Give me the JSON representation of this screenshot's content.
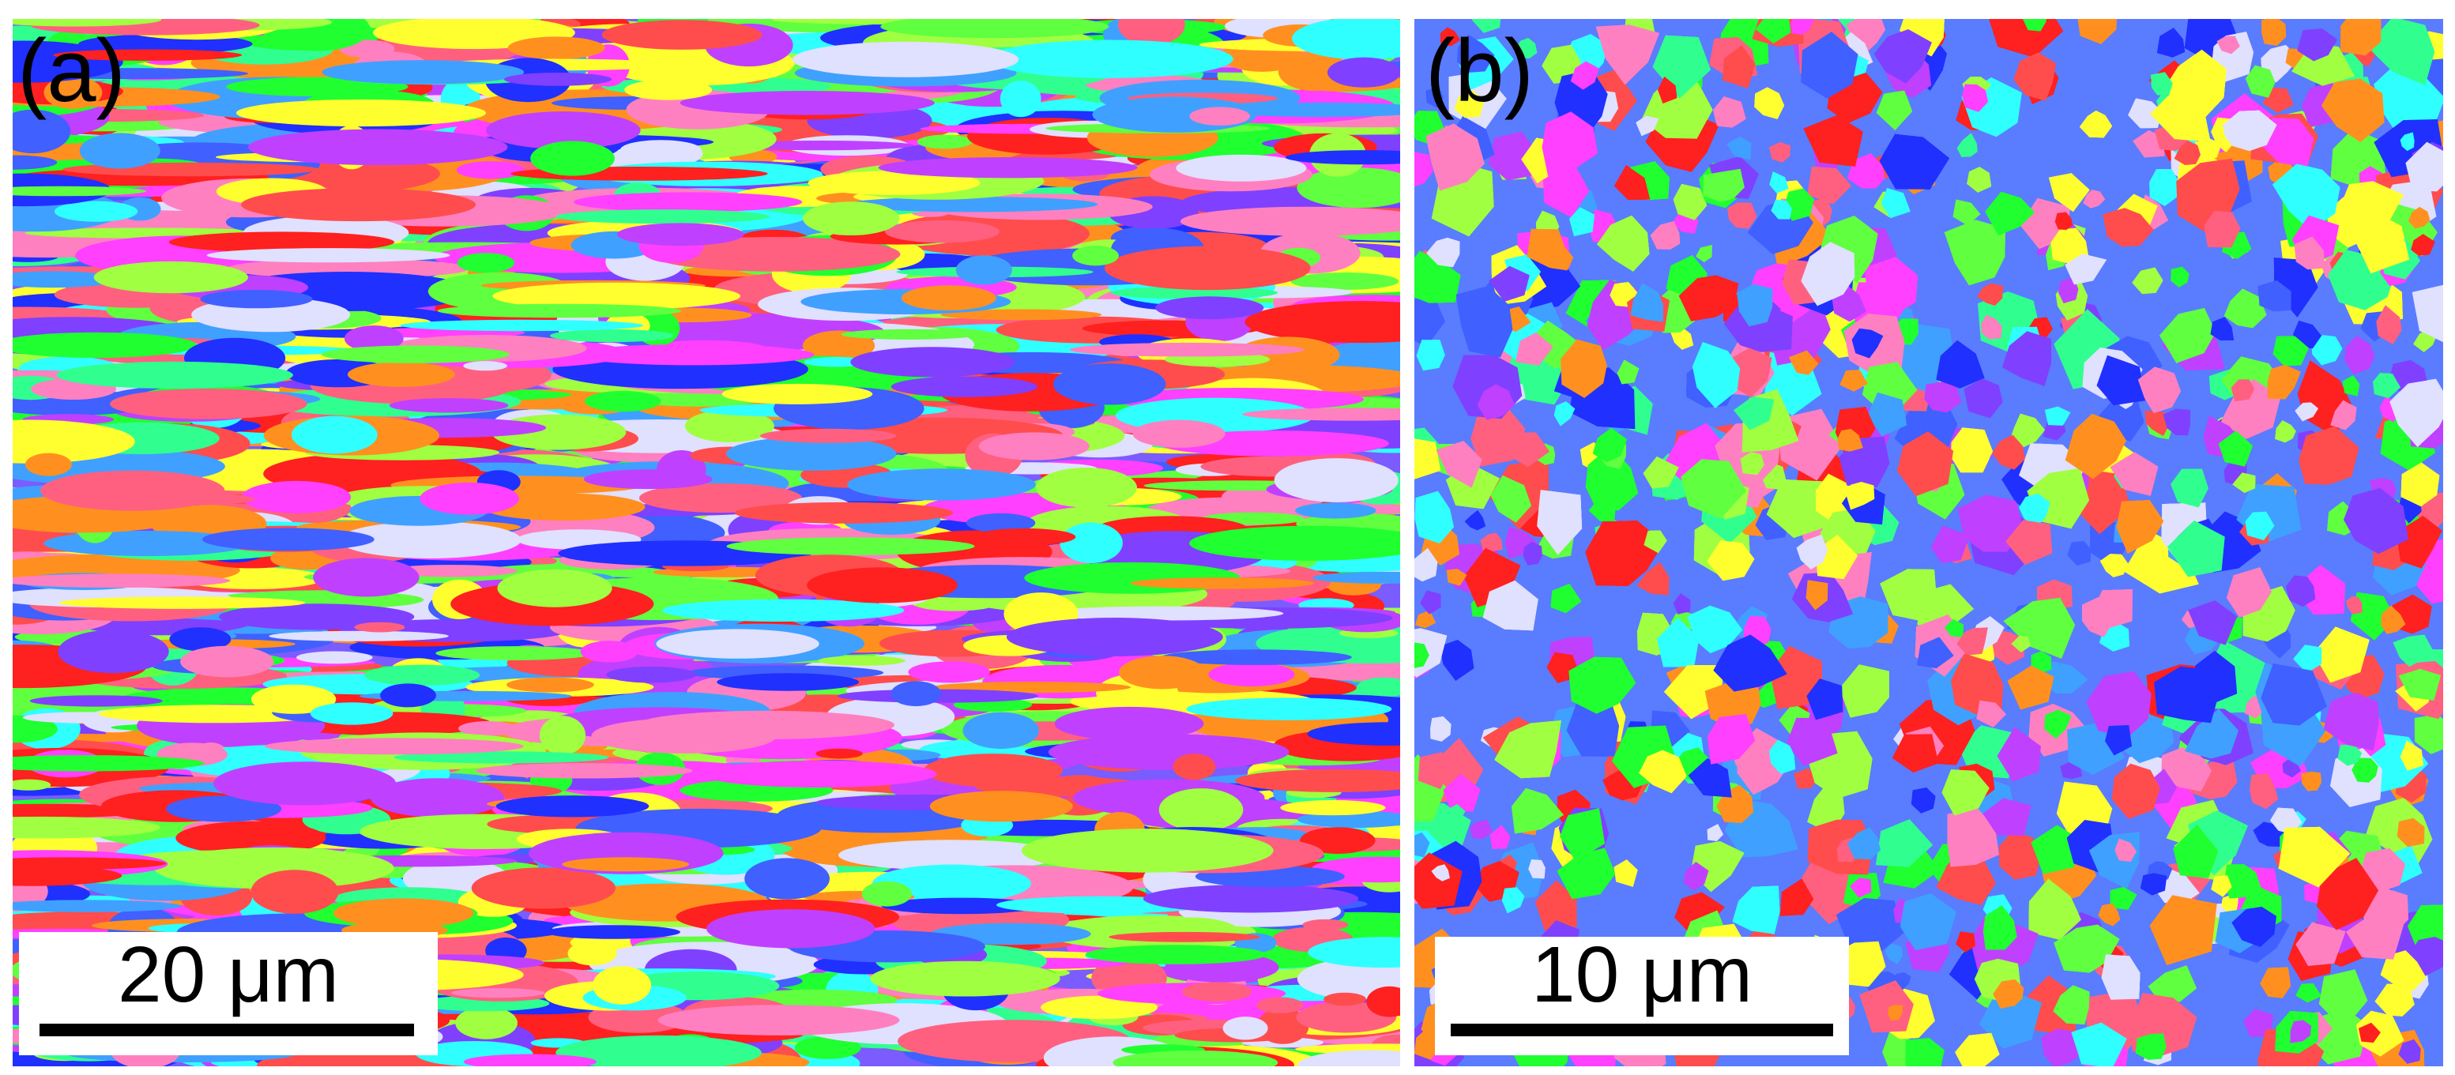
{
  "panels": [
    {
      "label": "(a)",
      "scale_bar": "20 μm"
    },
    {
      "label": "(b)",
      "scale_bar": "10 μm"
    }
  ]
}
